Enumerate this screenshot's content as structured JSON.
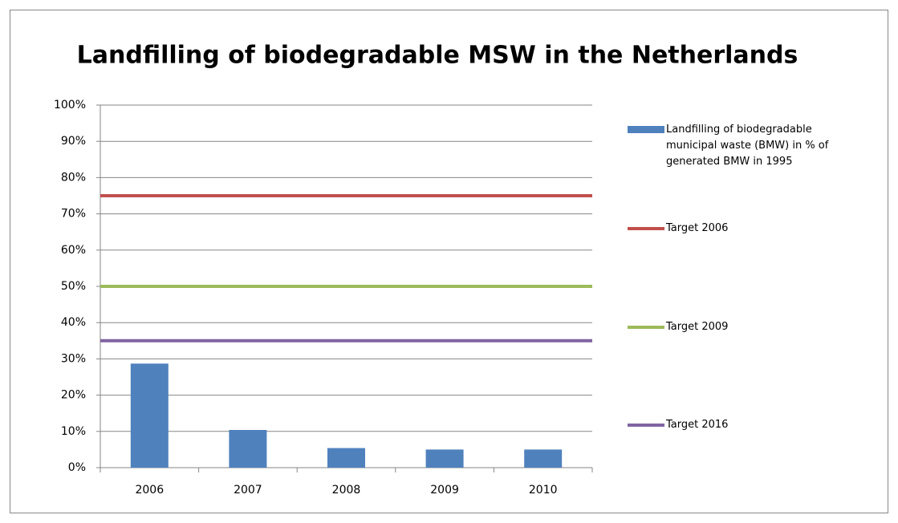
{
  "chart_data": {
    "type": "bar",
    "title": "Landfilling of biodegradable MSW in the Netherlands",
    "categories": [
      "2006",
      "2007",
      "2008",
      "2009",
      "2010"
    ],
    "series": [
      {
        "name": "Landfilling of biodegradable municipal waste (BMW) in % of generated BMW in 1995",
        "type": "bar",
        "color": "#4f81bd",
        "values": [
          28.7,
          10.4,
          5.4,
          5.0,
          5.0
        ]
      },
      {
        "name": "Target 2006",
        "type": "line",
        "color": "#c0504d",
        "values": [
          75,
          75,
          75,
          75,
          75
        ]
      },
      {
        "name": "Target 2009",
        "type": "line",
        "color": "#9bbb59",
        "values": [
          50,
          50,
          50,
          50,
          50
        ]
      },
      {
        "name": "Target 2016",
        "type": "line",
        "color": "#8064a2",
        "values": [
          35,
          35,
          35,
          35,
          35
        ]
      }
    ],
    "ylim": [
      0,
      100
    ],
    "yticks": [
      {
        "value": 0,
        "label": "0%"
      },
      {
        "value": 10,
        "label": "10%"
      },
      {
        "value": 20,
        "label": "20%"
      },
      {
        "value": 30,
        "label": "30%"
      },
      {
        "value": 40,
        "label": "40%"
      },
      {
        "value": 50,
        "label": "50%"
      },
      {
        "value": 60,
        "label": "60%"
      },
      {
        "value": 70,
        "label": "70%"
      },
      {
        "value": 80,
        "label": "80%"
      },
      {
        "value": 90,
        "label": "90%"
      },
      {
        "value": 100,
        "label": "100%"
      }
    ],
    "grid": true,
    "legend": "right"
  }
}
